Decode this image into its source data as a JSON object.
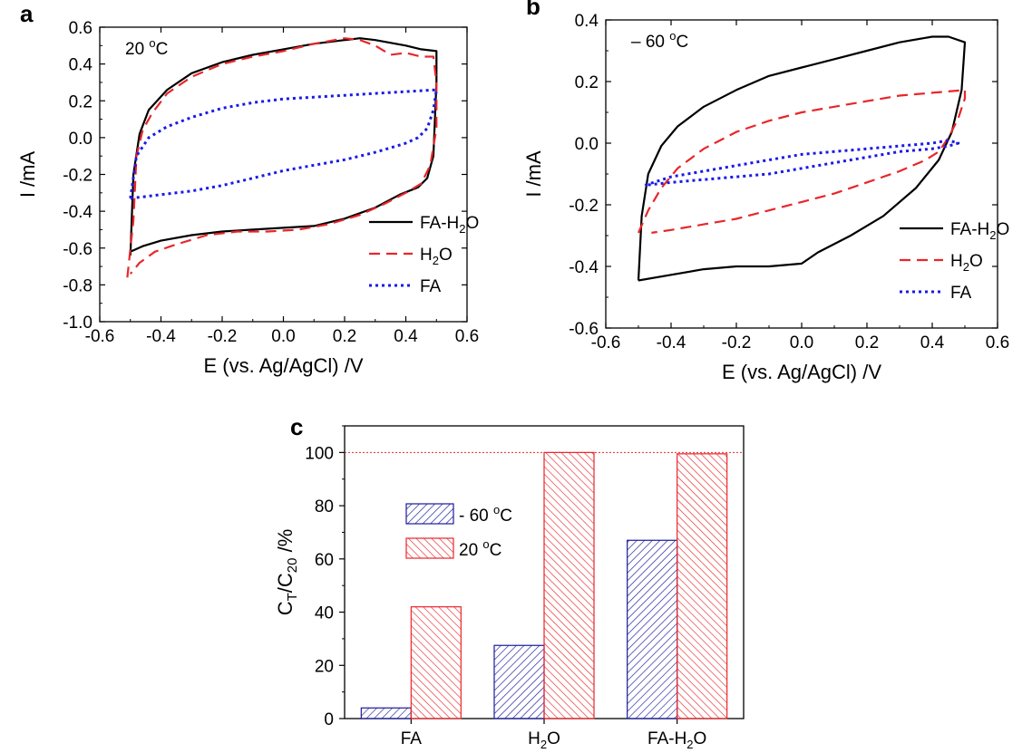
{
  "chart_data": [
    {
      "id": "a",
      "type": "line",
      "panel_label": "a",
      "annotation": {
        "text": "20 ",
        "sup": "o",
        "after": "C"
      },
      "xlabel": "E (vs. Ag/AgCl) /V",
      "ylabel": "I /mA",
      "xlim": [
        -0.6,
        0.6
      ],
      "ylim": [
        -1.0,
        0.6
      ],
      "xticks": [
        "-0.6",
        "-0.4",
        "-0.2",
        "0.0",
        "0.2",
        "0.4",
        "0.6"
      ],
      "yticks": [
        "-1.0",
        "-0.8",
        "-0.6",
        "-0.4",
        "-0.2",
        "0.0",
        "0.2",
        "0.4",
        "0.6"
      ],
      "legend_position": "bottom-right",
      "series": [
        {
          "name": "FA-H2O",
          "legend": {
            "base": "FA-H",
            "sub": "2",
            "after": "O"
          },
          "color": "#000000",
          "style": "solid",
          "points": [
            [
              -0.5,
              -0.64
            ],
            [
              -0.49,
              -0.2
            ],
            [
              -0.47,
              0.02
            ],
            [
              -0.44,
              0.15
            ],
            [
              -0.38,
              0.26
            ],
            [
              -0.3,
              0.35
            ],
            [
              -0.2,
              0.41
            ],
            [
              -0.1,
              0.45
            ],
            [
              0.0,
              0.48
            ],
            [
              0.1,
              0.51
            ],
            [
              0.2,
              0.53
            ],
            [
              0.25,
              0.54
            ],
            [
              0.3,
              0.53
            ],
            [
              0.4,
              0.5
            ],
            [
              0.45,
              0.48
            ],
            [
              0.5,
              0.47
            ],
            [
              0.5,
              0.3
            ],
            [
              0.49,
              -0.1
            ],
            [
              0.47,
              -0.22
            ],
            [
              0.44,
              -0.27
            ],
            [
              0.38,
              -0.31
            ],
            [
              0.3,
              -0.38
            ],
            [
              0.2,
              -0.44
            ],
            [
              0.1,
              -0.48
            ],
            [
              0.0,
              -0.49
            ],
            [
              -0.1,
              -0.5
            ],
            [
              -0.2,
              -0.51
            ],
            [
              -0.3,
              -0.53
            ],
            [
              -0.4,
              -0.56
            ],
            [
              -0.46,
              -0.59
            ],
            [
              -0.5,
              -0.62
            ]
          ]
        },
        {
          "name": "H2O",
          "legend": {
            "base": "H",
            "sub": "2",
            "after": "O"
          },
          "color": "#e8262a",
          "style": "dashed",
          "points": [
            [
              -0.51,
              -0.76
            ],
            [
              -0.49,
              -0.45
            ],
            [
              -0.48,
              -0.1
            ],
            [
              -0.46,
              0.04
            ],
            [
              -0.43,
              0.13
            ],
            [
              -0.38,
              0.24
            ],
            [
              -0.3,
              0.33
            ],
            [
              -0.2,
              0.4
            ],
            [
              -0.1,
              0.44
            ],
            [
              0.0,
              0.47
            ],
            [
              0.1,
              0.51
            ],
            [
              0.2,
              0.54
            ],
            [
              0.25,
              0.53
            ],
            [
              0.3,
              0.5
            ],
            [
              0.35,
              0.45
            ],
            [
              0.4,
              0.46
            ],
            [
              0.45,
              0.44
            ],
            [
              0.49,
              0.44
            ],
            [
              0.5,
              0.3
            ],
            [
              0.5,
              0.05
            ],
            [
              0.48,
              -0.15
            ],
            [
              0.45,
              -0.25
            ],
            [
              0.4,
              -0.3
            ],
            [
              0.33,
              -0.36
            ],
            [
              0.25,
              -0.42
            ],
            [
              0.15,
              -0.47
            ],
            [
              0.05,
              -0.5
            ],
            [
              -0.05,
              -0.51
            ],
            [
              -0.15,
              -0.51
            ],
            [
              -0.25,
              -0.53
            ],
            [
              -0.35,
              -0.58
            ],
            [
              -0.42,
              -0.62
            ],
            [
              -0.47,
              -0.68
            ],
            [
              -0.5,
              -0.74
            ]
          ]
        },
        {
          "name": "FA",
          "legend": {
            "base": "FA",
            "sub": "",
            "after": ""
          },
          "color": "#1a1ae6",
          "style": "dotted",
          "points": [
            [
              -0.5,
              -0.33
            ],
            [
              -0.48,
              -0.1
            ],
            [
              -0.44,
              0.0
            ],
            [
              -0.38,
              0.06
            ],
            [
              -0.3,
              0.11
            ],
            [
              -0.2,
              0.16
            ],
            [
              -0.1,
              0.19
            ],
            [
              0.0,
              0.21
            ],
            [
              0.1,
              0.22
            ],
            [
              0.2,
              0.23
            ],
            [
              0.3,
              0.24
            ],
            [
              0.4,
              0.25
            ],
            [
              0.5,
              0.26
            ],
            [
              0.49,
              0.15
            ],
            [
              0.47,
              0.05
            ],
            [
              0.44,
              0.0
            ],
            [
              0.4,
              -0.03
            ],
            [
              0.3,
              -0.08
            ],
            [
              0.2,
              -0.12
            ],
            [
              0.1,
              -0.15
            ],
            [
              0.0,
              -0.18
            ],
            [
              -0.1,
              -0.22
            ],
            [
              -0.2,
              -0.26
            ],
            [
              -0.3,
              -0.29
            ],
            [
              -0.4,
              -0.31
            ],
            [
              -0.5,
              -0.33
            ]
          ]
        }
      ]
    },
    {
      "id": "b",
      "type": "line",
      "panel_label": "b",
      "annotation": {
        "text": "– 60 ",
        "sup": "o",
        "after": "C"
      },
      "xlabel": "E (vs. Ag/AgCl) /V",
      "ylabel": "I /mA",
      "xlim": [
        -0.6,
        0.6
      ],
      "ylim": [
        -0.6,
        0.5
      ],
      "xticks": [
        "-0.6",
        "-0.4",
        "-0.2",
        "0.0",
        "0.2",
        "0.4",
        "0.6"
      ],
      "yticks": [
        "-0.6",
        "-0.4",
        "-0.2",
        "0.0",
        "0.2",
        "0.4"
      ],
      "legend_position": "bottom-right",
      "series": [
        {
          "name": "FA-H2O",
          "legend": {
            "base": "FA-H",
            "sub": "2",
            "after": "O"
          },
          "color": "#000000",
          "style": "solid",
          "points": [
            [
              -0.5,
              -0.43
            ],
            [
              -0.49,
              -0.2
            ],
            [
              -0.47,
              -0.05
            ],
            [
              -0.43,
              0.05
            ],
            [
              -0.38,
              0.12
            ],
            [
              -0.3,
              0.19
            ],
            [
              -0.2,
              0.25
            ],
            [
              -0.1,
              0.3
            ],
            [
              0.0,
              0.33
            ],
            [
              0.1,
              0.36
            ],
            [
              0.2,
              0.39
            ],
            [
              0.3,
              0.42
            ],
            [
              0.4,
              0.44
            ],
            [
              0.45,
              0.44
            ],
            [
              0.5,
              0.42
            ],
            [
              0.49,
              0.25
            ],
            [
              0.46,
              0.1
            ],
            [
              0.42,
              0.0
            ],
            [
              0.35,
              -0.1
            ],
            [
              0.25,
              -0.2
            ],
            [
              0.15,
              -0.27
            ],
            [
              0.05,
              -0.33
            ],
            [
              0.0,
              -0.37
            ],
            [
              -0.1,
              -0.38
            ],
            [
              -0.2,
              -0.38
            ],
            [
              -0.3,
              -0.39
            ],
            [
              -0.4,
              -0.41
            ],
            [
              -0.5,
              -0.43
            ]
          ]
        },
        {
          "name": "H2O",
          "legend": {
            "base": "H",
            "sub": "2",
            "after": "O"
          },
          "color": "#e8262a",
          "style": "dashed",
          "points": [
            [
              -0.5,
              -0.26
            ],
            [
              -0.47,
              -0.18
            ],
            [
              -0.43,
              -0.1
            ],
            [
              -0.38,
              -0.03
            ],
            [
              -0.3,
              0.04
            ],
            [
              -0.2,
              0.1
            ],
            [
              -0.1,
              0.14
            ],
            [
              0.0,
              0.17
            ],
            [
              0.1,
              0.19
            ],
            [
              0.2,
              0.21
            ],
            [
              0.3,
              0.23
            ],
            [
              0.4,
              0.24
            ],
            [
              0.5,
              0.25
            ],
            [
              0.5,
              0.22
            ],
            [
              0.48,
              0.15
            ],
            [
              0.45,
              0.08
            ],
            [
              0.42,
              0.03
            ],
            [
              0.38,
              0.0
            ],
            [
              0.3,
              -0.04
            ],
            [
              0.2,
              -0.08
            ],
            [
              0.1,
              -0.12
            ],
            [
              0.0,
              -0.15
            ],
            [
              -0.1,
              -0.18
            ],
            [
              -0.2,
              -0.21
            ],
            [
              -0.3,
              -0.23
            ],
            [
              -0.4,
              -0.25
            ],
            [
              -0.46,
              -0.26
            ]
          ]
        },
        {
          "name": "FA",
          "legend": {
            "base": "FA",
            "sub": "",
            "after": ""
          },
          "color": "#1a1ae6",
          "style": "dotted",
          "points": [
            [
              -0.48,
              -0.09
            ],
            [
              -0.4,
              -0.06
            ],
            [
              -0.3,
              -0.04
            ],
            [
              -0.2,
              -0.02
            ],
            [
              -0.1,
              0.0
            ],
            [
              0.0,
              0.02
            ],
            [
              0.1,
              0.03
            ],
            [
              0.2,
              0.04
            ],
            [
              0.3,
              0.05
            ],
            [
              0.4,
              0.06
            ],
            [
              0.45,
              0.07
            ],
            [
              0.48,
              0.06
            ],
            [
              0.45,
              0.05
            ],
            [
              0.4,
              0.04
            ],
            [
              0.3,
              0.03
            ],
            [
              0.2,
              0.01
            ],
            [
              0.1,
              -0.01
            ],
            [
              0.0,
              -0.03
            ],
            [
              -0.1,
              -0.05
            ],
            [
              -0.2,
              -0.06
            ],
            [
              -0.3,
              -0.07
            ],
            [
              -0.4,
              -0.08
            ],
            [
              -0.48,
              -0.09
            ]
          ]
        }
      ]
    },
    {
      "id": "c",
      "type": "bar",
      "panel_label": "c",
      "ylabel": {
        "base": "C",
        "sub1": "T",
        "mid": "/C",
        "sub2": "20",
        "after": " /%"
      },
      "ylim": [
        0,
        110
      ],
      "yticks": [
        "0",
        "20",
        "40",
        "60",
        "80",
        "100"
      ],
      "reference_line": 100,
      "categories": [
        {
          "base": "FA",
          "sub": "",
          "after": ""
        },
        {
          "base": "H",
          "sub": "2",
          "after": "O"
        },
        {
          "base": "FA-H",
          "sub": "2",
          "after": "O"
        }
      ],
      "legend_position": "top-left",
      "series": [
        {
          "name": "- 60 oC",
          "legend": {
            "text": "- 60 ",
            "sup": "o",
            "after": "C"
          },
          "color": "#1a1a9c",
          "values": [
            4,
            27.5,
            67
          ]
        },
        {
          "name": "20 oC",
          "legend": {
            "text": "20 ",
            "sup": "o",
            "after": "C"
          },
          "color": "#e8262a",
          "values": [
            42,
            100,
            99.5
          ]
        }
      ]
    }
  ]
}
